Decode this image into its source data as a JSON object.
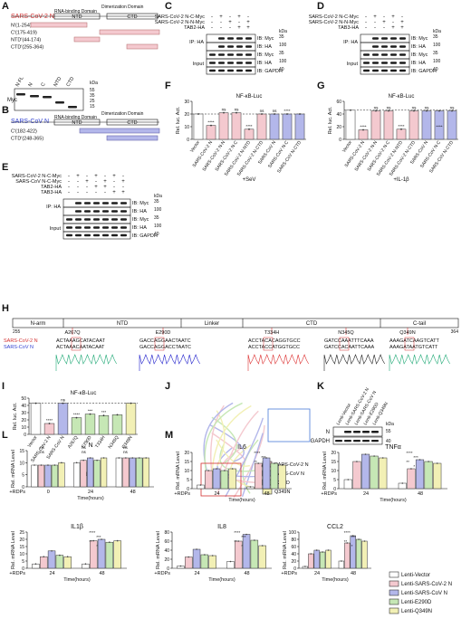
{
  "panels": [
    "A",
    "B",
    "C",
    "D",
    "E",
    "F",
    "G",
    "H",
    "I",
    "J",
    "K",
    "L",
    "M"
  ],
  "A": {
    "title": "SARS-CoV-2 N",
    "domains": [
      "RNA-binding Domain",
      "Dimerization Domain"
    ],
    "segments": [
      "NTD",
      "CTD"
    ],
    "constructs": [
      {
        "name": "N",
        "range": "(1-254)"
      },
      {
        "name": "C",
        "range": "(175-419)"
      },
      {
        "name": "NTD",
        "range": "(44-174)"
      },
      {
        "name": "CTD",
        "range": "(255-364)"
      }
    ],
    "lanes": [
      "N FL",
      "N",
      "C",
      "NTD",
      "CTD"
    ],
    "blot": "Myc",
    "markers": [
      "55",
      "35",
      "25",
      "15"
    ],
    "kda": "kDa"
  },
  "B": {
    "title": "SARS-CoV N",
    "domains": [
      "RNA-binding Domain",
      "Dimerization Domain"
    ],
    "segments": [
      "NTD",
      "CTD"
    ],
    "constructs": [
      {
        "name": "C",
        "range": "(182-422)"
      },
      {
        "name": "CTD",
        "range": "(248-365)"
      }
    ]
  },
  "C": {
    "rows": [
      "SARS-CoV-2 N-C-Myc",
      "SARS-CoV-2 N-N-Myc",
      "TAB2-HA"
    ],
    "signs": [
      [
        "-",
        "+",
        "-",
        "+",
        "-"
      ],
      [
        "-",
        "-",
        "+",
        "-",
        "+"
      ],
      [
        "-",
        "-",
        "-",
        "+",
        "+"
      ]
    ],
    "blots": [
      "IB: Myc",
      "IB: HA",
      "IB: Myc",
      "IB: HA",
      "IB: GAPDH"
    ],
    "groups": [
      "IP: HA",
      "Input"
    ],
    "markers": [
      "35",
      "100",
      "35",
      "100",
      "40"
    ],
    "kda": "kDa"
  },
  "D": {
    "rows": [
      "SARS-CoV-2 N-C-Myc",
      "SARS-CoV-2 N-N-Myc",
      "TAB3-HA"
    ],
    "signs": [
      [
        "-",
        "+",
        "-",
        "+",
        "-"
      ],
      [
        "-",
        "-",
        "+",
        "-",
        "+"
      ],
      [
        "-",
        "-",
        "-",
        "+",
        "+"
      ]
    ],
    "blots": [
      "IB: Myc",
      "IB: HA",
      "IB: Myc",
      "IB: HA",
      "IB: GAPDH"
    ],
    "groups": [
      "IP: HA",
      "Input"
    ],
    "markers": [
      "35",
      "100",
      "35",
      "100",
      "40"
    ],
    "kda": "kDa"
  },
  "E": {
    "rows": [
      "SARS-CoV-2 N-C-Myc",
      "SARS-CoV N-C-Myc",
      "TAB2-HA",
      "TAB3-HA"
    ],
    "signs": [
      [
        "-",
        "+",
        "-",
        "+",
        "-",
        "+",
        "-"
      ],
      [
        "-",
        "-",
        "+",
        "-",
        "+",
        "-",
        "+"
      ],
      [
        "-",
        "-",
        "-",
        "+",
        "+",
        "-",
        "-"
      ],
      [
        "-",
        "-",
        "-",
        "-",
        "-",
        "+",
        "+"
      ]
    ],
    "blots": [
      "IB: Myc",
      "IB: HA",
      "IB: Myc",
      "IB: HA",
      "IB: GAPDH"
    ],
    "groups": [
      "IP: HA",
      "Input"
    ],
    "markers": [
      "35",
      "100",
      "35",
      "100",
      "40"
    ],
    "kda": "kDa"
  },
  "F": {
    "title": "NF-κB-Luc",
    "ylabel": "Rel. luc. Act.",
    "treatment": "+SeV",
    "yticks": [
      "0",
      "10",
      "20",
      "30"
    ],
    "ns": [
      "ns",
      "ns",
      "ns",
      "ns"
    ],
    "stars": [
      "****",
      "****",
      "****"
    ]
  },
  "G": {
    "title": "NF-κB-Luc",
    "ylabel": "Rel. luc. Act.",
    "treatment": "+IL-1β",
    "yticks": [
      "0",
      "20",
      "40",
      "60"
    ],
    "ns": [
      "ns",
      "ns",
      "ns",
      "ns",
      "ns"
    ],
    "stars": [
      "****",
      "****",
      "****"
    ]
  },
  "FG_categories": [
    "Vector",
    "SARS-CoV-2 N",
    "SARS-CoV-2 N-N",
    "SARS-CoV-2 N-C",
    "SARS-CoV-2 N-NTD",
    "SARS-CoV-2 N-CTD",
    "SARS-CoV N",
    "SARS-CoV N-C",
    "SARS-CoV N-CTD"
  ],
  "H": {
    "regions": [
      "N-arm",
      "NTD",
      "Linker",
      "CTD",
      "C-tail"
    ],
    "start": "255",
    "end": "364",
    "mutations": [
      "A267Q",
      "E290D",
      "T334H",
      "N345Q",
      "Q349N"
    ],
    "seq_labels": [
      "SARS-CoV-2 N",
      "SARS-CoV N"
    ],
    "sequences": [
      [
        "ACTAAAGCATACAAT",
        "ACTAAACAATACAAT"
      ],
      [
        "GACCAGGAACTAATC",
        "GACCAGGACCTAATC"
      ],
      [
        "ACCTACACAGGTGCC",
        "ACCTACCATGGTGCC"
      ],
      [
        "GATCCAAATTTCAAA",
        "GATCCACAATTCAAA"
      ],
      [
        "AAAGATCAAGTCATT",
        "AAAGATAATGTCATT"
      ]
    ]
  },
  "I": {
    "title": "NF-κB-Luc",
    "ylabel": "Rel. luc. Act.",
    "treatment": "+IL-1β",
    "yticks": [
      "0",
      "10",
      "20",
      "30",
      "40",
      "50"
    ],
    "categories": [
      "Vector",
      "SARS-CoV-2 N",
      "SARS-CoV N",
      "A267Q",
      "E290D",
      "T334H",
      "N345Q",
      "Q349N"
    ],
    "ns": [
      "ns"
    ],
    "stars": [
      "****",
      "****",
      "***",
      "***"
    ]
  },
  "J": {
    "legend": [
      "SARS-CoV-2 N",
      "SARS-CoV N",
      "E290D",
      "Q349N"
    ]
  },
  "K": {
    "lanes": [
      "Lenti-Vector",
      "Lenti-SARS-CoV-2 N",
      "Lenti-SARS-CoV N",
      "Lenti-E290D",
      "Lenti-Q349N"
    ],
    "blots": [
      "N",
      "GAPDH"
    ],
    "markers": [
      "55",
      "40"
    ],
    "kda": "kDa"
  },
  "L": {
    "title": "N",
    "ylabel": "Rel. mRNA Level",
    "xlabel": "Time(hours)",
    "rdps": "+RDPs",
    "times": [
      "0",
      "24",
      "48"
    ],
    "yticks": [
      "0",
      "5",
      "10",
      "15"
    ],
    "ns": [
      "ns",
      "ns",
      "ns",
      "ns",
      "ns",
      "ns"
    ]
  },
  "M": {
    "rdps": "+RDPs",
    "ylabel": "Rel. mRNA Level",
    "xlabel": "Time(hours)",
    "times": [
      "24",
      "48"
    ],
    "genes": [
      "IL6",
      "TNFα",
      "IL1β",
      "IL8",
      "CCL2"
    ],
    "yticks": {
      "IL6": [
        "0",
        "5",
        "10",
        "15",
        "20"
      ],
      "TNFα": [
        "0",
        "5",
        "10",
        "15",
        "20"
      ],
      "IL1β": [
        "0",
        "5",
        "10",
        "15",
        "20",
        "25"
      ],
      "IL8": [
        "0",
        "20",
        "40",
        "60",
        "80"
      ],
      "CCL2": [
        "0",
        "20",
        "40",
        "60",
        "80",
        "100"
      ]
    },
    "sig": [
      "****",
      "***",
      "**",
      "*"
    ]
  },
  "legend": [
    "Lenti-Vector",
    "Lenti-SARS-CoV-2 N",
    "Lenti-SARS-CoV N",
    "Lenti-E290D",
    "Lenti-Q349N"
  ],
  "colors": {
    "vector": "#ffffff",
    "cov2": "#f4c9cf",
    "cov": "#b3b7ea",
    "e290d": "#c6e7b5",
    "q349n": "#f2f0b5",
    "red": "#d32f2f",
    "blue": "#2f3fd0"
  },
  "chart_data": [
    {
      "type": "bar",
      "panel": "F",
      "categories": [
        "Vector",
        "SARS-CoV-2 N",
        "SARS-CoV-2 N-N",
        "SARS-CoV-2 N-C",
        "SARS-CoV-2 N-NTD",
        "SARS-CoV-2 N-CTD",
        "SARS-CoV N",
        "SARS-CoV N-C",
        "SARS-CoV N-CTD"
      ],
      "values": [
        20,
        11,
        21,
        21,
        8,
        20,
        20,
        20,
        20
      ],
      "ylim": [
        0,
        30
      ],
      "title": "NF-κB-Luc",
      "ylabel": "Rel. luc. Act."
    },
    {
      "type": "bar",
      "panel": "G",
      "categories": [
        "Vector",
        "SARS-CoV-2 N",
        "SARS-CoV-2 N-N",
        "SARS-CoV-2 N-C",
        "SARS-CoV-2 N-NTD",
        "SARS-CoV-2 N-CTD",
        "SARS-CoV N",
        "SARS-CoV N-C",
        "SARS-CoV N-CTD"
      ],
      "values": [
        46,
        15,
        45,
        45,
        16,
        45,
        45,
        45,
        45
      ],
      "ylim": [
        0,
        60
      ],
      "title": "NF-κB-Luc",
      "ylabel": "Rel. luc. Act."
    },
    {
      "type": "bar",
      "panel": "I",
      "categories": [
        "Vector",
        "SARS-CoV-2 N",
        "SARS-CoV N",
        "A267Q",
        "E290D",
        "T334H",
        "N345Q",
        "Q349N"
      ],
      "values": [
        43,
        15,
        43,
        23,
        28,
        26,
        27,
        43
      ],
      "ylim": [
        0,
        50
      ],
      "title": "NF-κB-Luc",
      "ylabel": "Rel. luc. Act."
    },
    {
      "type": "bar",
      "panel": "L",
      "gene": "N",
      "x": [
        "0",
        "24",
        "48"
      ],
      "series": [
        {
          "name": "Lenti-Vector",
          "values": [
            9,
            10,
            12
          ]
        },
        {
          "name": "Lenti-SARS-CoV-2 N",
          "values": [
            9,
            11,
            12
          ]
        },
        {
          "name": "Lenti-SARS-CoV N",
          "values": [
            9,
            12,
            12
          ]
        },
        {
          "name": "Lenti-E290D",
          "values": [
            9,
            11,
            12
          ]
        },
        {
          "name": "Lenti-Q349N",
          "values": [
            10,
            12,
            12
          ]
        }
      ],
      "ylim": [
        0,
        15
      ]
    },
    {
      "type": "bar",
      "panel": "M",
      "gene": "IL6",
      "x": [
        "24",
        "48"
      ],
      "series": [
        {
          "name": "Lenti-Vector",
          "values": [
            2,
            1
          ]
        },
        {
          "name": "Lenti-SARS-CoV-2 N",
          "values": [
            10,
            14
          ]
        },
        {
          "name": "Lenti-SARS-CoV N",
          "values": [
            11,
            17
          ]
        },
        {
          "name": "Lenti-E290D",
          "values": [
            10,
            14
          ]
        },
        {
          "name": "Lenti-Q349N",
          "values": [
            11,
            13
          ]
        }
      ],
      "ylim": [
        0,
        20
      ]
    },
    {
      "type": "bar",
      "panel": "M",
      "gene": "TNFα",
      "x": [
        "24",
        "48"
      ],
      "series": [
        {
          "name": "Lenti-Vector",
          "values": [
            5,
            3
          ]
        },
        {
          "name": "Lenti-SARS-CoV-2 N",
          "values": [
            15,
            11
          ]
        },
        {
          "name": "Lenti-SARS-CoV N",
          "values": [
            19,
            16
          ]
        },
        {
          "name": "Lenti-E290D",
          "values": [
            18,
            15
          ]
        },
        {
          "name": "Lenti-Q349N",
          "values": [
            17,
            14
          ]
        }
      ],
      "ylim": [
        0,
        20
      ]
    },
    {
      "type": "bar",
      "panel": "M",
      "gene": "IL1β",
      "x": [
        "24",
        "48"
      ],
      "series": [
        {
          "name": "Lenti-Vector",
          "values": [
            3,
            3
          ]
        },
        {
          "name": "Lenti-SARS-CoV-2 N",
          "values": [
            8,
            19
          ]
        },
        {
          "name": "Lenti-SARS-CoV N",
          "values": [
            12,
            20
          ]
        },
        {
          "name": "Lenti-E290D",
          "values": [
            9,
            18
          ]
        },
        {
          "name": "Lenti-Q349N",
          "values": [
            8,
            19
          ]
        }
      ],
      "ylim": [
        0,
        25
      ]
    },
    {
      "type": "bar",
      "panel": "M",
      "gene": "IL8",
      "x": [
        "24",
        "48"
      ],
      "series": [
        {
          "name": "Lenti-Vector",
          "values": [
            5,
            15
          ]
        },
        {
          "name": "Lenti-SARS-CoV-2 N",
          "values": [
            25,
            60
          ]
        },
        {
          "name": "Lenti-SARS-CoV N",
          "values": [
            42,
            75
          ]
        },
        {
          "name": "Lenti-E290D",
          "values": [
            30,
            62
          ]
        },
        {
          "name": "Lenti-Q349N",
          "values": [
            28,
            50
          ]
        }
      ],
      "ylim": [
        0,
        80
      ]
    },
    {
      "type": "bar",
      "panel": "M",
      "gene": "CCL2",
      "x": [
        "24",
        "48"
      ],
      "series": [
        {
          "name": "Lenti-Vector",
          "values": [
            5,
            20
          ]
        },
        {
          "name": "Lenti-SARS-CoV-2 N",
          "values": [
            40,
            70
          ]
        },
        {
          "name": "Lenti-SARS-CoV N",
          "values": [
            50,
            90
          ]
        },
        {
          "name": "Lenti-E290D",
          "values": [
            45,
            80
          ]
        },
        {
          "name": "Lenti-Q349N",
          "values": [
            50,
            75
          ]
        }
      ],
      "ylim": [
        0,
        100
      ]
    }
  ]
}
